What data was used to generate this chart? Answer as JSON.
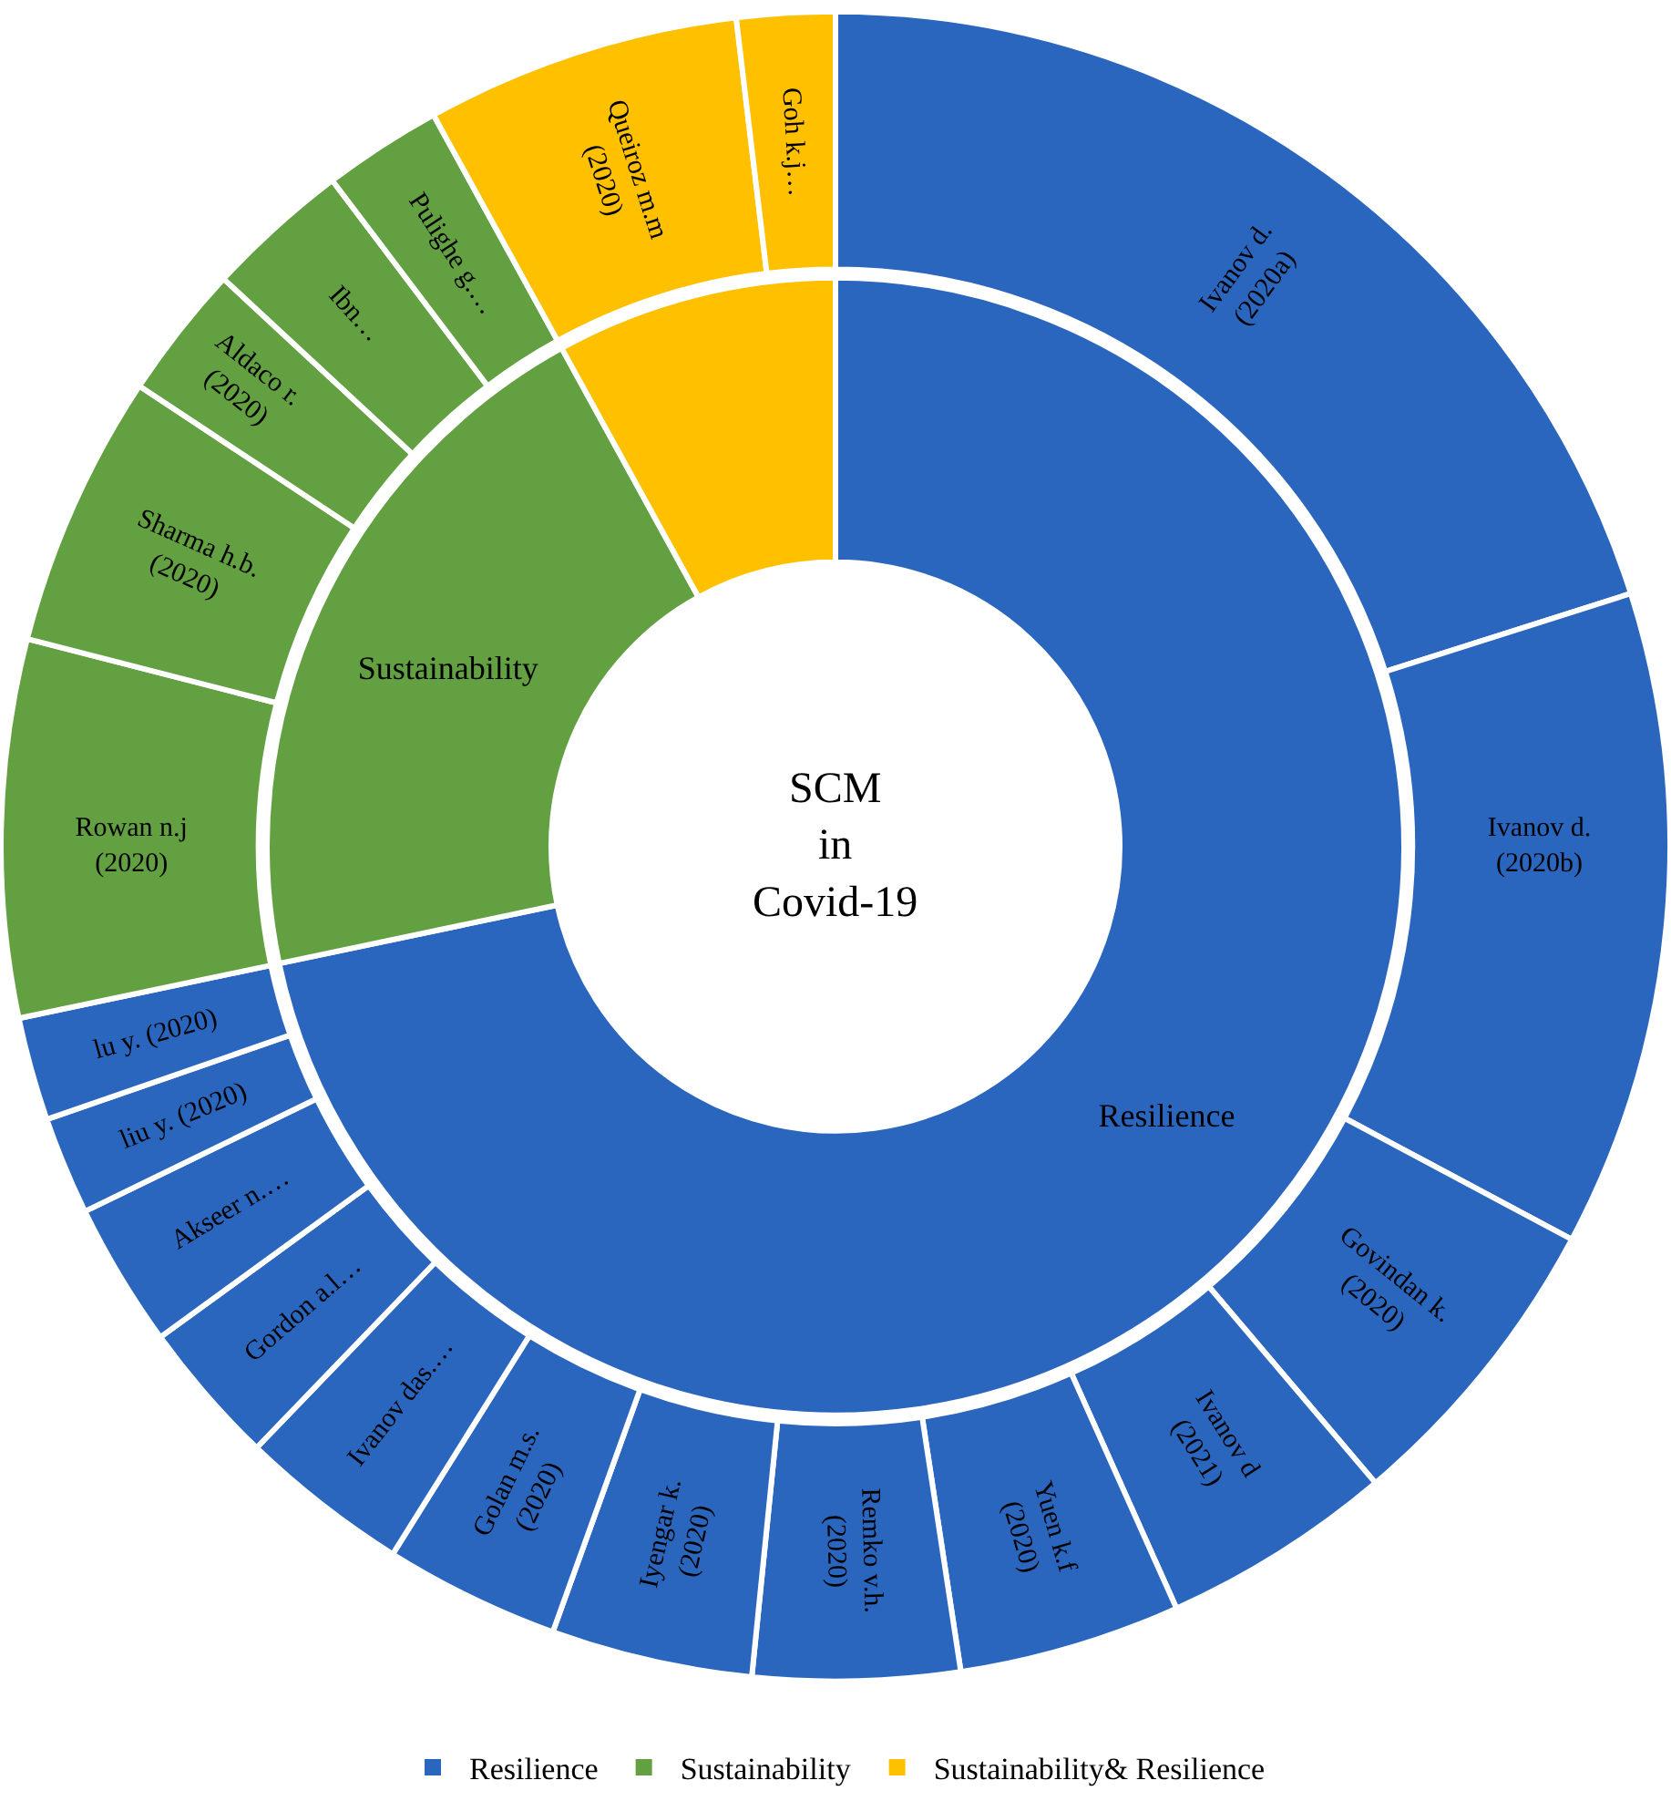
{
  "chart_data": [
    {
      "type": "donut",
      "annotations": [
        "SCM\nin\nCovid-19"
      ],
      "categories": [
        "Resilience",
        "Sustainability",
        "Sustainability& Resilience"
      ],
      "values": [
        71.7,
        20.3,
        8.0
      ],
      "colors": [
        "#2a66be",
        "#62a042",
        "#ffc000"
      ],
      "value_labels": [
        "Resilience",
        "Sustainability",
        null
      ],
      "legend": "bottom"
    },
    {
      "type": "donut",
      "categories": [
        "Ivanov d.\n(2020a)",
        "Ivanov d.\n(2020b)",
        "Govindan k.\n(2020)",
        "Ivanov d\n(2021)",
        "Yuen k.f\n(2020)",
        "Remko v.h.\n(2020)",
        "Iyengar k.\n(2020)",
        "Golan m.s.\n(2020)",
        "Ivanov das.…",
        "Gordon a.l…",
        "Akseer n.…",
        "liu y. (2020)",
        "lu y. (2020)",
        "Rowan n.j\n(2020)",
        "Sharma h.b.\n(2020)",
        "Aldaco r.\n(2020)",
        "Ibn…",
        "Pulighe g.…",
        "Queiroz m.m\n(2020)",
        "Goh k.j…"
      ],
      "values": [
        20.1,
        12.7,
        6.0,
        4.5,
        4.3,
        4.0,
        3.9,
        3.4,
        3.3,
        2.8,
        2.8,
        1.9,
        2.0,
        7.3,
        5.3,
        2.6,
        2.8,
        2.3,
        6.1,
        1.9
      ],
      "colors": [
        "#2a66be",
        "#2a66be",
        "#2a66be",
        "#2a66be",
        "#2a66be",
        "#2a66be",
        "#2a66be",
        "#2a66be",
        "#2a66be",
        "#2a66be",
        "#2a66be",
        "#2a66be",
        "#2a66be",
        "#62a042",
        "#62a042",
        "#62a042",
        "#62a042",
        "#62a042",
        "#ffc000",
        "#ffc000"
      ]
    }
  ]
}
